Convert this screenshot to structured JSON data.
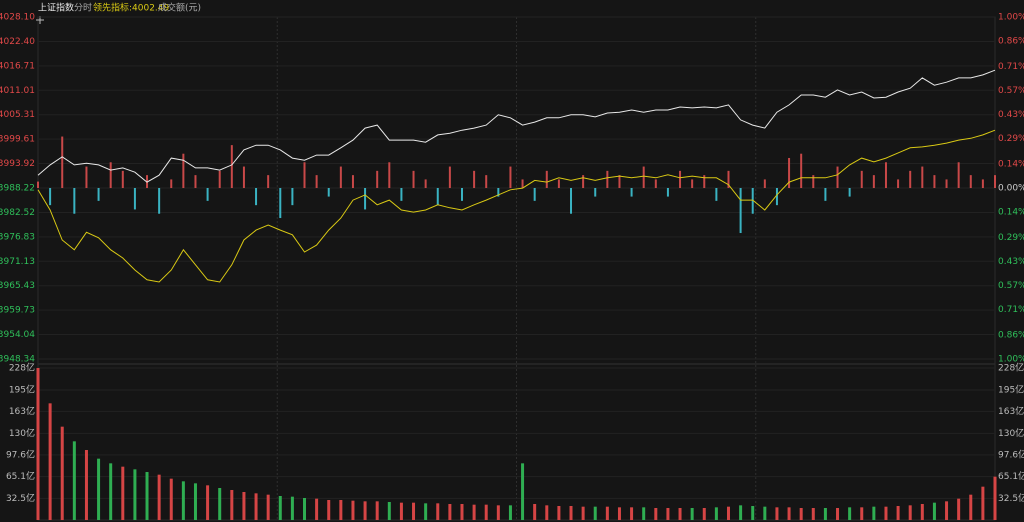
{
  "chart_data": [
    {
      "type": "line",
      "subtitle": "分时",
      "ylim": [
        3948.34,
        4028.1
      ],
      "yticks": [
        {
          "value": 4028.1,
          "label": "4028.10"
        },
        {
          "value": 4022.4,
          "label": "4022.40"
        },
        {
          "value": 4016.71,
          "label": "4016.71"
        },
        {
          "value": 4011.01,
          "label": "4011.01"
        },
        {
          "value": 4005.31,
          "label": "4005.31"
        },
        {
          "value": 3999.61,
          "label": "3999.61"
        },
        {
          "value": 3993.92,
          "label": "3993.92"
        },
        {
          "value": 3988.22,
          "label": "3988.22"
        },
        {
          "value": 3982.52,
          "label": "3982.52"
        },
        {
          "value": 3976.83,
          "label": "3976.83"
        },
        {
          "value": 3971.13,
          "label": "3971.13"
        },
        {
          "value": 3965.43,
          "label": "3965.43"
        },
        {
          "value": 3959.73,
          "label": "3959.73"
        },
        {
          "value": 3954.04,
          "label": "3954.04"
        },
        {
          "value": 3948.34,
          "label": "3948.34"
        }
      ],
      "y2lim": [
        -1,
        1
      ],
      "y2ticks": [
        {
          "value": 1,
          "label": "1.00%"
        },
        {
          "value": 0.86,
          "label": "0.86%"
        },
        {
          "value": 0.71,
          "label": "0.71%"
        },
        {
          "value": 0.57,
          "label": "0.57%"
        },
        {
          "value": 0.43,
          "label": "0.43%"
        },
        {
          "value": 0.29,
          "label": "0.29%"
        },
        {
          "value": 0.14,
          "label": "0.14%"
        },
        {
          "value": 0,
          "label": "0.00%"
        },
        {
          "value": -0.14,
          "label": "0.14%"
        },
        {
          "value": -0.29,
          "label": "0.29%"
        },
        {
          "value": -0.43,
          "label": "0.43%"
        },
        {
          "value": -0.57,
          "label": "0.57%"
        },
        {
          "value": -0.71,
          "label": "0.71%"
        },
        {
          "value": -0.86,
          "label": "0.86%"
        },
        {
          "value": -1,
          "label": "1.00%"
        }
      ],
      "grid": true,
      "up_color": "#e04848",
      "flat_color": "#cccccc",
      "down_color": "#2fbf5a",
      "series": [
        {
          "name": "上证指数",
          "color": "#e8e8e8",
          "values": [
            3991.2,
            3993.6,
            3995.5,
            3993.6,
            3994.0,
            3993.6,
            3992.4,
            3992.9,
            3991.9,
            3989.6,
            3991.2,
            3995.2,
            3994.7,
            3992.9,
            3992.9,
            3992.4,
            3993.6,
            3997.1,
            3998.2,
            3998.2,
            3997.1,
            3995.2,
            3994.7,
            3995.9,
            3995.9,
            3997.6,
            3999.4,
            4002.2,
            4002.9,
            3999.4,
            3999.4,
            3999.4,
            3998.9,
            4000.6,
            4001.0,
            4001.7,
            4002.2,
            4002.9,
            4005.3,
            4004.6,
            4002.9,
            4003.6,
            4004.6,
            4004.6,
            4005.3,
            4005.3,
            4004.8,
            4005.7,
            4005.9,
            4006.4,
            4005.9,
            4006.4,
            4006.4,
            4007.1,
            4006.9,
            4007.1,
            4006.9,
            4007.6,
            4004.1,
            4002.9,
            4002.2,
            4005.9,
            4007.6,
            4009.9,
            4009.9,
            4009.4,
            4011.1,
            4009.9,
            4010.6,
            4009.2,
            4009.4,
            4010.6,
            4011.5,
            4013.9,
            4012.2,
            4012.9,
            4013.9,
            4013.9,
            4014.6,
            4015.7
          ]
        },
        {
          "name": "领先指标:4002.49",
          "color": "#d9c914",
          "values": [
            3987.8,
            3983.1,
            3976.1,
            3973.8,
            3977.9,
            3976.6,
            3973.8,
            3971.9,
            3969.1,
            3966.8,
            3966.3,
            3969.1,
            3973.8,
            3970.3,
            3966.8,
            3966.3,
            3970.3,
            3976.1,
            3978.4,
            3979.6,
            3978.4,
            3977.3,
            3973.3,
            3974.9,
            3978.4,
            3981.2,
            3985.4,
            3986.6,
            3984.3,
            3985.4,
            3983.1,
            3982.6,
            3983.1,
            3984.3,
            3983.6,
            3983.1,
            3984.3,
            3985.4,
            3986.6,
            3987.8,
            3988.2,
            3990.0,
            3989.6,
            3990.6,
            3990.0,
            3990.6,
            3990.0,
            3990.6,
            3991.0,
            3990.6,
            3991.0,
            3990.6,
            3991.3,
            3990.6,
            3991.0,
            3990.6,
            3990.6,
            3989.0,
            3985.4,
            3985.4,
            3983.1,
            3986.6,
            3989.6,
            3990.6,
            3990.6,
            3990.6,
            3991.3,
            3993.6,
            3995.2,
            3994.3,
            3995.2,
            3996.4,
            3997.6,
            3997.8,
            3998.2,
            3998.7,
            3999.4,
            3999.8,
            4000.6,
            4001.7
          ]
        }
      ],
      "bars": {
        "up_color": "#c84848",
        "down_color": "#3ab3c2",
        "values": [
          1.5,
          -4,
          12,
          -6,
          5,
          -3,
          6,
          4,
          -5,
          3,
          -6,
          2,
          8,
          3,
          -3,
          4,
          10,
          5,
          -4,
          3,
          -7,
          -4,
          6,
          3,
          -2,
          5,
          3,
          -5,
          4,
          6,
          -3,
          4,
          2,
          -4,
          5,
          -3,
          4,
          3,
          -2,
          5,
          2,
          -3,
          4,
          2,
          -6,
          3,
          -2,
          4,
          3,
          -2,
          5,
          2,
          -2,
          4,
          2,
          3,
          -3,
          4,
          -10.5,
          -6,
          2,
          -4,
          7,
          8,
          3,
          -3,
          5,
          -2,
          4,
          3,
          6,
          2,
          4,
          5,
          3,
          2,
          6,
          3,
          2,
          3
        ]
      }
    },
    {
      "type": "bar",
      "title": "成交额(元)",
      "ylim": [
        0,
        228
      ],
      "yticks": [
        {
          "value": 228,
          "label": "228亿"
        },
        {
          "value": 195,
          "label": "195亿"
        },
        {
          "value": 163,
          "label": "163亿"
        },
        {
          "value": 130,
          "label": "130亿"
        },
        {
          "value": 97.6,
          "label": "97.6亿"
        },
        {
          "value": 65.1,
          "label": "65.1亿"
        },
        {
          "value": 32.5,
          "label": "32.5亿"
        }
      ],
      "up_color": "#d64545",
      "down_color": "#2fae52",
      "values": [
        228,
        175,
        140,
        118,
        105,
        92,
        85,
        80,
        76,
        72,
        68,
        62,
        58,
        55,
        52,
        48,
        45,
        42,
        40,
        38,
        36,
        35,
        33,
        32,
        30,
        30,
        29,
        28,
        28,
        27,
        26,
        26,
        25,
        25,
        24,
        24,
        23,
        23,
        22,
        22,
        85,
        24,
        22,
        21,
        21,
        20,
        20,
        20,
        19,
        19,
        19,
        18,
        18,
        18,
        18,
        18,
        19,
        20,
        22,
        21,
        20,
        19,
        19,
        18,
        18,
        18,
        18,
        19,
        19,
        20,
        20,
        21,
        22,
        24,
        26,
        28,
        32,
        38,
        50,
        65
      ]
    }
  ]
}
